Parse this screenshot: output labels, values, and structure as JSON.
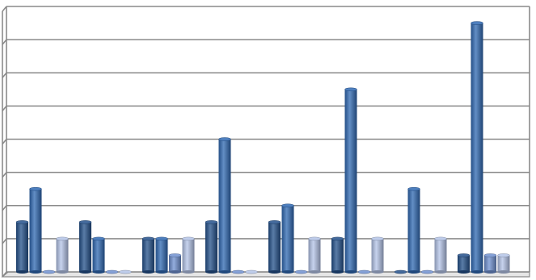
{
  "chart_data": {
    "type": "bar",
    "categories": [
      null,
      null,
      null,
      null,
      null,
      null,
      null,
      null
    ],
    "series": [
      {
        "color": "#23508a",
        "values": [
          1.5,
          1.5,
          1,
          1.5,
          1.5,
          1,
          0,
          0.5
        ]
      },
      {
        "color": "#2f68b2",
        "values": [
          2.5,
          1,
          1,
          4,
          2,
          5.5,
          2.5,
          7.5
        ]
      },
      {
        "color": "#6f90d0",
        "values": [
          0,
          0,
          0.5,
          0,
          0,
          0,
          0,
          0.5
        ]
      },
      {
        "color": "#b4c4e8",
        "values": [
          1,
          0,
          1,
          0,
          1,
          1,
          1,
          0.5
        ]
      }
    ],
    "ylim": [
      0,
      8
    ],
    "yticks": [
      0,
      1,
      2,
      3,
      4,
      5,
      6,
      7,
      8
    ],
    "grid": true
  }
}
